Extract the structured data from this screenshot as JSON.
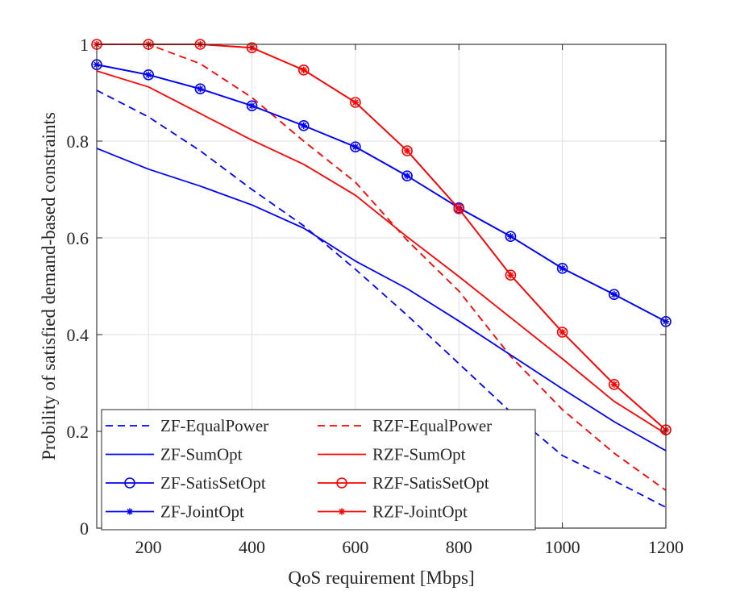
{
  "chart_data": {
    "type": "line",
    "title": "",
    "xlabel": "QoS requirement [Mbps]",
    "ylabel": "Probility of satisfied demand-based constraints",
    "xlim": [
      100,
      1200
    ],
    "ylim": [
      0,
      1
    ],
    "xticks": [
      200,
      400,
      600,
      800,
      1000,
      1200
    ],
    "yticks": [
      0,
      0.2,
      0.4,
      0.6,
      0.8,
      1
    ],
    "xtick_labels": [
      "200",
      "400",
      "600",
      "800",
      "1000",
      "1200"
    ],
    "ytick_labels": [
      "0",
      "0.2",
      "0.4",
      "0.6",
      "0.8",
      "1"
    ],
    "grid": true,
    "legend_position": "bottom-left",
    "x": [
      100,
      200,
      300,
      400,
      500,
      600,
      700,
      800,
      900,
      1000,
      1100,
      1200
    ],
    "series": [
      {
        "name": "ZF-EqualPower",
        "color": "#0000ff",
        "dash": true,
        "marker": "none",
        "values": [
          0.905,
          0.85,
          0.78,
          0.7,
          0.625,
          0.535,
          0.44,
          0.34,
          0.24,
          0.15,
          0.098,
          0.043
        ]
      },
      {
        "name": "RZF-EqualPower",
        "color": "#ff0000",
        "dash": true,
        "marker": "none",
        "values": [
          1.0,
          1.0,
          0.96,
          0.89,
          0.8,
          0.715,
          0.595,
          0.49,
          0.355,
          0.245,
          0.155,
          0.078
        ]
      },
      {
        "name": "ZF-SumOpt",
        "color": "#0000ff",
        "dash": false,
        "marker": "none",
        "values": [
          0.785,
          0.742,
          0.707,
          0.668,
          0.62,
          0.552,
          0.495,
          0.428,
          0.358,
          0.288,
          0.22,
          0.16
        ]
      },
      {
        "name": "RZF-SumOpt",
        "color": "#ff0000",
        "dash": false,
        "marker": "none",
        "values": [
          0.945,
          0.912,
          0.857,
          0.802,
          0.752,
          0.688,
          0.602,
          0.52,
          0.435,
          0.35,
          0.262,
          0.195
        ]
      },
      {
        "name": "ZF-SatisSetOpt",
        "color": "#0000ff",
        "dash": false,
        "marker": "circle",
        "values": [
          0.958,
          0.937,
          0.908,
          0.873,
          0.832,
          0.788,
          0.728,
          0.662,
          0.603,
          0.537,
          0.483,
          0.427
        ]
      },
      {
        "name": "RZF-SatisSetOpt",
        "color": "#ff0000",
        "dash": false,
        "marker": "circle",
        "values": [
          1.0,
          1.0,
          1.0,
          0.993,
          0.947,
          0.88,
          0.78,
          0.66,
          0.523,
          0.405,
          0.297,
          0.203
        ]
      },
      {
        "name": "ZF-JointOpt",
        "color": "#0000ff",
        "dash": false,
        "marker": "star",
        "values": [
          0.958,
          0.937,
          0.908,
          0.873,
          0.832,
          0.788,
          0.728,
          0.662,
          0.603,
          0.537,
          0.483,
          0.427
        ]
      },
      {
        "name": "RZF-JointOpt",
        "color": "#ff0000",
        "dash": false,
        "marker": "star",
        "values": [
          1.0,
          1.0,
          1.0,
          0.993,
          0.947,
          0.88,
          0.78,
          0.66,
          0.523,
          0.405,
          0.297,
          0.203
        ]
      }
    ],
    "legend_order": [
      "ZF-EqualPower",
      "RZF-EqualPower",
      "ZF-SumOpt",
      "RZF-SumOpt",
      "ZF-SatisSetOpt",
      "RZF-SatisSetOpt",
      "ZF-JointOpt",
      "RZF-JointOpt"
    ]
  }
}
